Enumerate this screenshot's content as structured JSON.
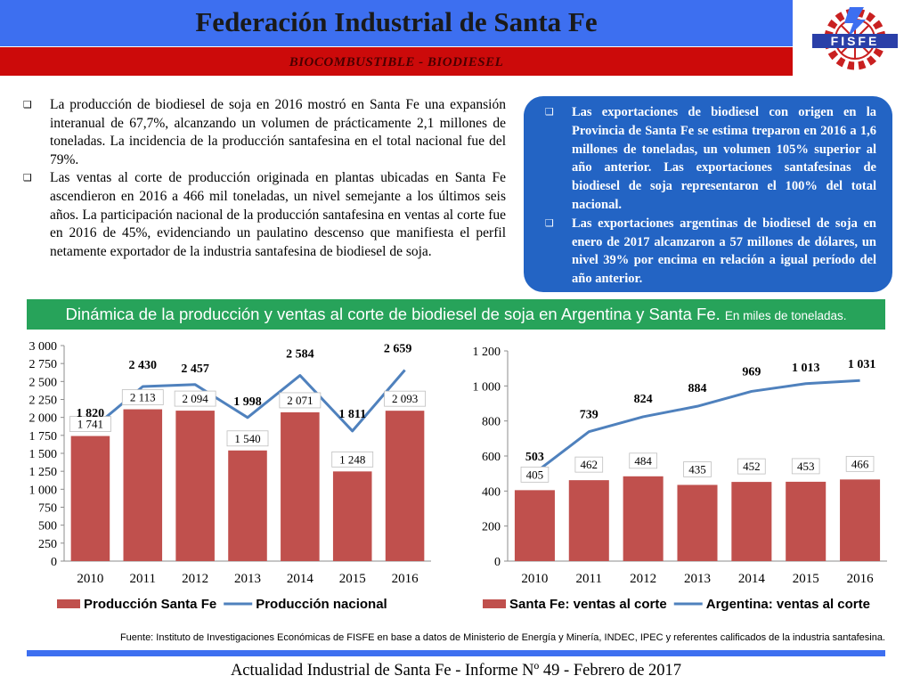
{
  "header": {
    "title": "Federación Industrial de Santa Fe",
    "subtitle": "BIOCOMBUSTIBLE - BIODIESEL",
    "logo_text": "FISFE"
  },
  "left_bullets": [
    "La producción de biodiesel de soja en 2016 mostró en Santa Fe una expansión interanual de 67,7%, alcanzando un volumen de prácticamente 2,1 millones de toneladas. La incidencia de la producción santafesina en el total nacional fue del 79%.",
    "Las ventas al corte de producción originada en plantas ubicadas en Santa Fe ascendieron en 2016 a 466 mil toneladas, un nivel semejante a los últimos seis años. La participación nacional de la producción santafesina en ventas al corte fue en 2016 de 45%, evidenciando un paulatino descenso que manifiesta el perfil netamente exportador de la industria santafesina de biodiesel de soja."
  ],
  "right_bullets": [
    "Las exportaciones de biodiesel con origen en la Provincia de Santa Fe se estima treparon en 2016 a 1,6 millones de toneladas, un volumen 105% superior al año anterior. Las exportaciones santafesinas de biodiesel de soja representaron el 100% del total nacional.",
    "Las exportaciones argentinas de biodiesel de soja en enero de 2017 alcanzaron a 57 millones de dólares, un nivel 39% por encima en relación a igual período del año anterior."
  ],
  "banner": {
    "text": "Dinámica de la producción y ventas al corte de biodiesel de soja en Argentina y Santa Fe.",
    "unit": "En miles de toneladas."
  },
  "chart_data": [
    {
      "type": "bar",
      "categories": [
        "2010",
        "2011",
        "2012",
        "2013",
        "2014",
        "2015",
        "2016"
      ],
      "ylim": [
        0,
        3000
      ],
      "yticks": [
        "0",
        "250",
        "500",
        "750",
        "1 000",
        "1 250",
        "1 500",
        "1 750",
        "2 000",
        "2 250",
        "2 500",
        "2 750",
        "3 000"
      ],
      "series": [
        {
          "name": "Producción Santa Fe",
          "kind": "bar",
          "color": "#c0504d",
          "values": [
            1741,
            2113,
            2094,
            1540,
            2071,
            1248,
            2093
          ],
          "labels": [
            "1 741",
            "2 113",
            "2 094",
            "1 540",
            "2 071",
            "1 248",
            "2 093"
          ]
        },
        {
          "name": "Producción nacional",
          "kind": "line",
          "color": "#4f81bd",
          "values": [
            1820,
            2430,
            2457,
            1998,
            2584,
            1811,
            2659
          ],
          "labels": [
            "1 820",
            "2 430",
            "2 457",
            "1 998",
            "2 584",
            "1 811",
            "2 659"
          ]
        }
      ]
    },
    {
      "type": "bar",
      "categories": [
        "2010",
        "2011",
        "2012",
        "2013",
        "2014",
        "2015",
        "2016"
      ],
      "ylim": [
        0,
        1200
      ],
      "yticks": [
        "0",
        "200",
        "400",
        "600",
        "800",
        "1 000",
        "1 200"
      ],
      "series": [
        {
          "name": "Santa Fe: ventas al corte",
          "kind": "bar",
          "color": "#c0504d",
          "values": [
            405,
            462,
            484,
            435,
            452,
            453,
            466
          ],
          "labels": [
            "405",
            "462",
            "484",
            "435",
            "452",
            "453",
            "466"
          ]
        },
        {
          "name": "Argentina: ventas al corte",
          "kind": "line",
          "color": "#4f81bd",
          "values": [
            503,
            739,
            824,
            884,
            969,
            1013,
            1031
          ],
          "labels": [
            "503",
            "739",
            "824",
            "884",
            "969",
            "1 013",
            "1 031"
          ]
        }
      ]
    }
  ],
  "source": "Fuente: Instituto de Investigaciones Económicas de  FISFE en base a datos de Ministerio de Energía y Minería, INDEC, IPEC y referentes calificados de la industria santafesina.",
  "footer": "Actualidad Industrial de Santa Fe - Informe Nº 49 - Febrero de 2017"
}
